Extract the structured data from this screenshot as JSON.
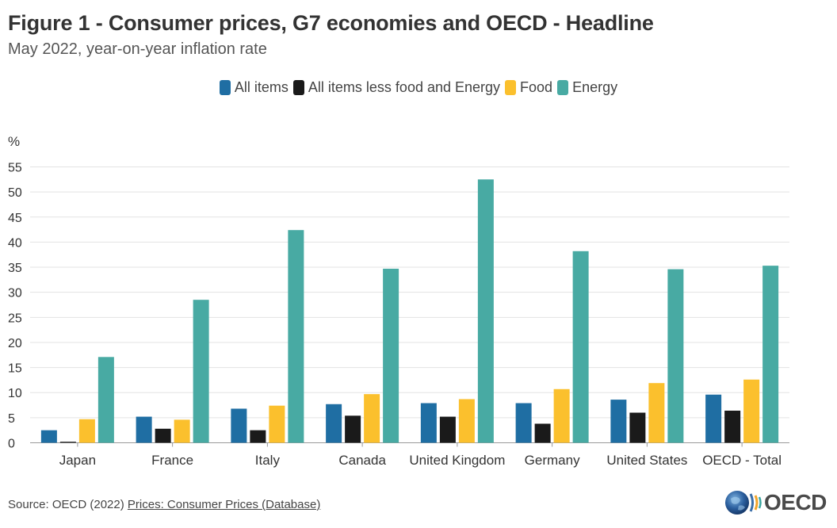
{
  "header": {
    "title": "Figure 1 - Consumer prices, G7 economies and OECD - Headline",
    "subtitle": "May 2022, year-on-year inflation rate"
  },
  "legend": {
    "items": [
      {
        "label": "All items",
        "color": "#1f6ea3"
      },
      {
        "label": "All items less food and Energy",
        "color": "#1a1a1a"
      },
      {
        "label": "Food",
        "color": "#fbc02d"
      },
      {
        "label": "Energy",
        "color": "#48aaa3"
      }
    ]
  },
  "footer": {
    "source_prefix": "Source: OECD (2022) ",
    "source_link": "Prices: Consumer Prices (Database)",
    "logo_text": "OECD"
  },
  "chart_data": {
    "type": "bar",
    "title": "Figure 1 - Consumer prices, G7 economies and OECD - Headline",
    "subtitle": "May 2022, year-on-year inflation rate",
    "ylabel": "%",
    "xlabel": "",
    "ylim": [
      0,
      55
    ],
    "yticks": [
      0,
      5,
      10,
      15,
      20,
      25,
      30,
      35,
      40,
      45,
      50,
      55
    ],
    "grid": true,
    "legend_position": "top-center",
    "categories": [
      "Japan",
      "France",
      "Italy",
      "Canada",
      "United Kingdom",
      "Germany",
      "United States",
      "OECD - Total"
    ],
    "series": [
      {
        "name": "All items",
        "color": "#1f6ea3",
        "values": [
          2.5,
          5.2,
          6.8,
          7.7,
          7.9,
          7.9,
          8.6,
          9.6
        ]
      },
      {
        "name": "All items less food and Energy",
        "color": "#1a1a1a",
        "values": [
          0.2,
          2.8,
          2.5,
          5.4,
          5.2,
          3.8,
          6.0,
          6.4
        ]
      },
      {
        "name": "Food",
        "color": "#fbc02d",
        "values": [
          4.7,
          4.6,
          7.4,
          9.7,
          8.7,
          10.7,
          11.9,
          12.6
        ]
      },
      {
        "name": "Energy",
        "color": "#48aaa3",
        "values": [
          17.1,
          28.5,
          42.4,
          34.7,
          52.5,
          38.2,
          34.6,
          35.3
        ]
      }
    ]
  }
}
